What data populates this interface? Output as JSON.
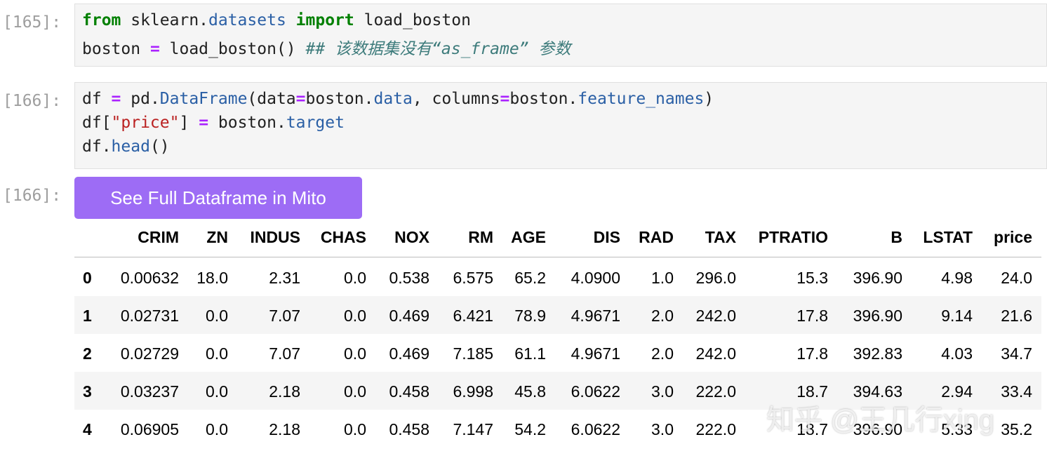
{
  "cells": [
    {
      "prompt": "[165]:",
      "code": [
        [
          {
            "text": "from",
            "style": "keyword"
          },
          {
            "text": " sklearn."
          },
          {
            "text": "datasets",
            "style": "attr"
          },
          {
            "text": " "
          },
          {
            "text": "import",
            "style": "keyword"
          },
          {
            "text": " load_boston"
          }
        ],
        [
          {
            "text": "boston "
          },
          {
            "text": "=",
            "style": "operator"
          },
          {
            "text": " load_boston() "
          },
          {
            "text": "## 该数据集没有“as_frame” 参数",
            "style": "comment"
          }
        ]
      ]
    },
    {
      "prompt": "[166]:",
      "code": [
        [
          {
            "text": "df "
          },
          {
            "text": "=",
            "style": "operator"
          },
          {
            "text": " pd."
          },
          {
            "text": "DataFrame",
            "style": "attr"
          },
          {
            "text": "(data"
          },
          {
            "text": "=",
            "style": "operator"
          },
          {
            "text": "boston."
          },
          {
            "text": "data",
            "style": "attr"
          },
          {
            "text": ", columns"
          },
          {
            "text": "=",
            "style": "operator"
          },
          {
            "text": "boston."
          },
          {
            "text": "feature_names",
            "style": "attr"
          },
          {
            "text": ")"
          }
        ],
        [
          {
            "text": "df["
          },
          {
            "text": "\"price\"",
            "style": "string"
          },
          {
            "text": "] "
          },
          {
            "text": "=",
            "style": "operator"
          },
          {
            "text": " boston."
          },
          {
            "text": "target",
            "style": "attr"
          }
        ],
        [
          {
            "text": "df."
          },
          {
            "text": "head",
            "style": "attr"
          },
          {
            "text": "()"
          }
        ]
      ]
    }
  ],
  "output": {
    "prompt": "[166]:",
    "button": "See Full Dataframe in Mito",
    "table": {
      "columns": [
        "CRIM",
        "ZN",
        "INDUS",
        "CHAS",
        "NOX",
        "RM",
        "AGE",
        "DIS",
        "RAD",
        "TAX",
        "PTRATIO",
        "B",
        "LSTAT",
        "price"
      ],
      "rows": [
        {
          "index": "0",
          "cells": [
            "0.00632",
            "18.0",
            "2.31",
            "0.0",
            "0.538",
            "6.575",
            "65.2",
            "4.0900",
            "1.0",
            "296.0",
            "15.3",
            "396.90",
            "4.98",
            "24.0"
          ]
        },
        {
          "index": "1",
          "cells": [
            "0.02731",
            "0.0",
            "7.07",
            "0.0",
            "0.469",
            "6.421",
            "78.9",
            "4.9671",
            "2.0",
            "242.0",
            "17.8",
            "396.90",
            "9.14",
            "21.6"
          ]
        },
        {
          "index": "2",
          "cells": [
            "0.02729",
            "0.0",
            "7.07",
            "0.0",
            "0.469",
            "7.185",
            "61.1",
            "4.9671",
            "2.0",
            "242.0",
            "17.8",
            "392.83",
            "4.03",
            "34.7"
          ]
        },
        {
          "index": "3",
          "cells": [
            "0.03237",
            "0.0",
            "2.18",
            "0.0",
            "0.458",
            "6.998",
            "45.8",
            "6.0622",
            "3.0",
            "222.0",
            "18.7",
            "394.63",
            "2.94",
            "33.4"
          ]
        },
        {
          "index": "4",
          "cells": [
            "0.06905",
            "0.0",
            "2.18",
            "0.0",
            "0.458",
            "7.147",
            "54.2",
            "6.0622",
            "3.0",
            "222.0",
            "18.7",
            "396.90",
            "5.33",
            "35.2"
          ]
        }
      ]
    }
  },
  "watermark": "知乎 @王几行xing"
}
